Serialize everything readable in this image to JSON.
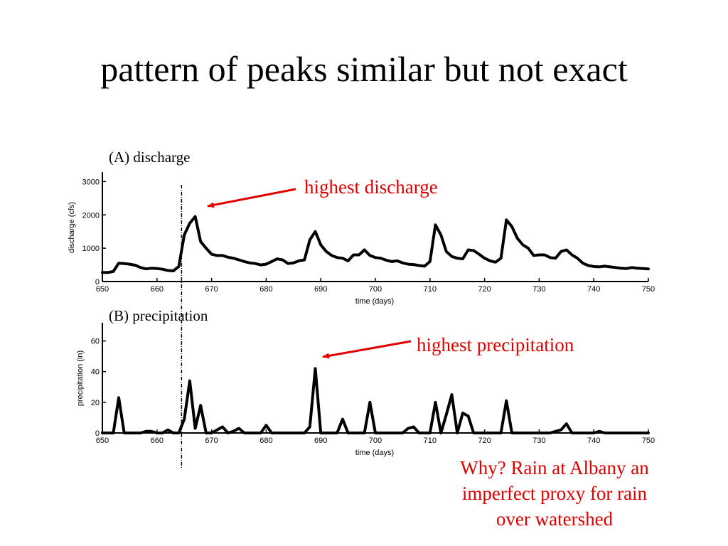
{
  "slide": {
    "title": "pattern of peaks similar but not exact",
    "why_lines": [
      "Why? Rain at Albany an",
      "imperfect proxy for rain",
      "over watershed"
    ]
  },
  "annotations": {
    "discharge": "highest discharge",
    "precipitation": "highest precipitation",
    "color": "#e00000"
  },
  "chart_data": [
    {
      "type": "line",
      "title": "(A) discharge",
      "xlabel": "time (days)",
      "ylabel": "discharge (cfs)",
      "xlim": [
        650,
        750
      ],
      "ylim": [
        0,
        3200
      ],
      "xticks": [
        650,
        660,
        670,
        680,
        690,
        700,
        710,
        720,
        730,
        740,
        750
      ],
      "yticks": [
        0,
        1000,
        2000,
        3000
      ],
      "marker_day": 664.5,
      "x": [
        650,
        651,
        652,
        653,
        654,
        655,
        656,
        657,
        658,
        659,
        660,
        661,
        662,
        663,
        664,
        665,
        666,
        667,
        668,
        669,
        670,
        671,
        672,
        673,
        674,
        675,
        676,
        677,
        678,
        679,
        680,
        681,
        682,
        683,
        684,
        685,
        686,
        687,
        688,
        689,
        690,
        691,
        692,
        693,
        694,
        695,
        696,
        697,
        698,
        699,
        700,
        701,
        702,
        703,
        704,
        705,
        706,
        707,
        708,
        709,
        710,
        711,
        712,
        713,
        714,
        715,
        716,
        717,
        718,
        719,
        720,
        721,
        722,
        723,
        724,
        725,
        726,
        727,
        728,
        729,
        730,
        731,
        732,
        733,
        734,
        735,
        736,
        737,
        738,
        739,
        740,
        741,
        742,
        743,
        744,
        745,
        746,
        747,
        748,
        749,
        750
      ],
      "series": [
        {
          "values": [
            270,
            270,
            300,
            550,
            540,
            520,
            490,
            420,
            380,
            400,
            390,
            370,
            330,
            320,
            450,
            1400,
            1750,
            1950,
            1200,
            1000,
            820,
            780,
            780,
            730,
            700,
            650,
            600,
            560,
            540,
            500,
            520,
            600,
            680,
            650,
            540,
            560,
            620,
            650,
            1250,
            1500,
            1100,
            900,
            780,
            720,
            700,
            620,
            800,
            800,
            950,
            780,
            720,
            700,
            640,
            600,
            620,
            560,
            520,
            510,
            480,
            460,
            600,
            1700,
            1400,
            900,
            750,
            700,
            680,
            950,
            930,
            820,
            700,
            620,
            580,
            700,
            1850,
            1650,
            1300,
            1100,
            1000,
            780,
            800,
            800,
            720,
            700,
            900,
            950,
            800,
            700,
            550,
            480,
            450,
            440,
            460,
            440,
            420,
            400,
            390,
            420,
            400,
            390,
            380
          ]
        }
      ]
    },
    {
      "type": "line",
      "title": "(B) precipitation",
      "xlabel": "time (days)",
      "ylabel": "precipitation (in)",
      "xlim": [
        650,
        750
      ],
      "ylim": [
        0,
        70
      ],
      "xticks": [
        650,
        660,
        670,
        680,
        690,
        700,
        710,
        720,
        730,
        740,
        750
      ],
      "yticks": [
        0,
        20,
        40,
        60
      ],
      "marker_day": 664.5,
      "x": [
        650,
        651,
        652,
        653,
        654,
        655,
        656,
        657,
        658,
        659,
        660,
        661,
        662,
        663,
        664,
        665,
        666,
        667,
        668,
        669,
        670,
        671,
        672,
        673,
        674,
        675,
        676,
        677,
        678,
        679,
        680,
        681,
        682,
        683,
        684,
        685,
        686,
        687,
        688,
        689,
        690,
        691,
        692,
        693,
        694,
        695,
        696,
        697,
        698,
        699,
        700,
        701,
        702,
        703,
        704,
        705,
        706,
        707,
        708,
        709,
        710,
        711,
        712,
        713,
        714,
        715,
        716,
        717,
        718,
        719,
        720,
        721,
        722,
        723,
        724,
        725,
        726,
        727,
        728,
        729,
        730,
        731,
        732,
        733,
        734,
        735,
        736,
        737,
        738,
        739,
        740,
        741,
        742,
        743,
        744,
        745,
        746,
        747,
        748,
        749,
        750
      ],
      "series": [
        {
          "values": [
            0,
            0,
            0,
            23,
            0,
            0,
            0,
            0,
            1,
            1,
            0,
            0,
            2,
            0,
            0,
            9,
            34,
            3,
            18,
            0,
            0,
            2,
            4,
            0,
            1,
            3,
            0,
            0,
            0,
            0,
            5,
            0,
            0,
            0,
            0,
            0,
            0,
            0,
            4,
            42,
            0,
            0,
            0,
            0,
            9,
            0,
            0,
            0,
            0,
            20,
            0,
            0,
            0,
            0,
            0,
            0,
            3,
            4,
            0,
            0,
            0,
            20,
            0,
            12,
            25,
            0,
            13,
            11,
            0,
            0,
            0,
            0,
            0,
            0,
            21,
            0,
            0,
            0,
            0,
            0,
            0,
            0,
            0,
            1,
            2,
            6,
            0,
            0,
            0,
            0,
            0,
            1,
            0,
            0,
            0,
            0,
            0,
            0,
            0,
            0,
            0
          ]
        }
      ]
    }
  ]
}
